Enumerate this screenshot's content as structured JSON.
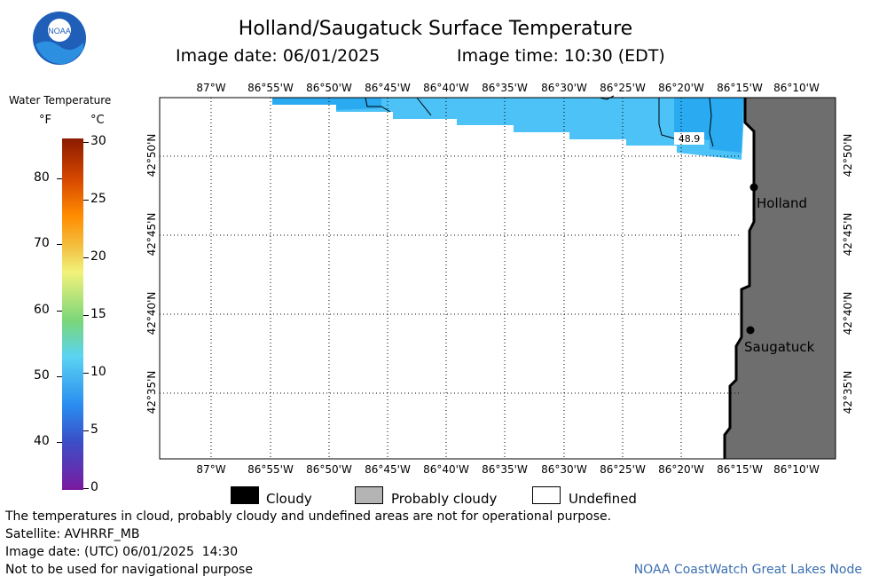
{
  "header": {
    "title": "Holland/Saugatuck Surface Temperature",
    "image_date": "Image date: 06/01/2025",
    "image_time": "Image time: 10:30 (EDT)"
  },
  "logo": {
    "text": "NOAA"
  },
  "legend": {
    "title": "Water Temperature",
    "unit_f": "°F",
    "unit_c": "°C",
    "f_ticks": [
      "80",
      "70",
      "60",
      "50",
      "40"
    ],
    "c_ticks": [
      "30",
      "25",
      "20",
      "15",
      "10",
      "5",
      "0"
    ],
    "colors": {
      "top": "#8b1a00",
      "orange": "#ff8c00",
      "yellow": "#f2f27a",
      "green": "#7ad67a",
      "cyan": "#5ad4f2",
      "blue": "#2a8cf0",
      "purple": "#7a1aa0"
    }
  },
  "map": {
    "lon_labels": [
      "87°W",
      "86°55'W",
      "86°50'W",
      "86°45'W",
      "86°40'W",
      "86°35'W",
      "86°30'W",
      "86°25'W",
      "86°20'W",
      "86°15'W",
      "86°10'W"
    ],
    "lat_labels": [
      "42°50'N",
      "42°45'N",
      "42°40'N",
      "42°35'N"
    ],
    "contour_label": "48.9",
    "cities": [
      "Holland",
      "Saugatuck"
    ],
    "colors": {
      "land": "#6e6e6e",
      "water_warm": "#2aaaf0",
      "water_cool": "#4cc2f6"
    }
  },
  "key": {
    "items": [
      {
        "label": "Cloudy",
        "color": "#000000"
      },
      {
        "label": "Probably cloudy",
        "color": "#b4b4b4"
      },
      {
        "label": "Undefined",
        "color": "#ffffff"
      }
    ]
  },
  "footer": {
    "notice": "The temperatures in cloud, probably cloudy and undefined areas are not for operational purpose.",
    "satellite": "Satellite: AVHRRF_MB",
    "utc_date": "Image date: (UTC) 06/01/2025  14:30",
    "nav_warning": "Not to be used for navigational purpose",
    "credit": "NOAA CoastWatch Great Lakes Node"
  }
}
